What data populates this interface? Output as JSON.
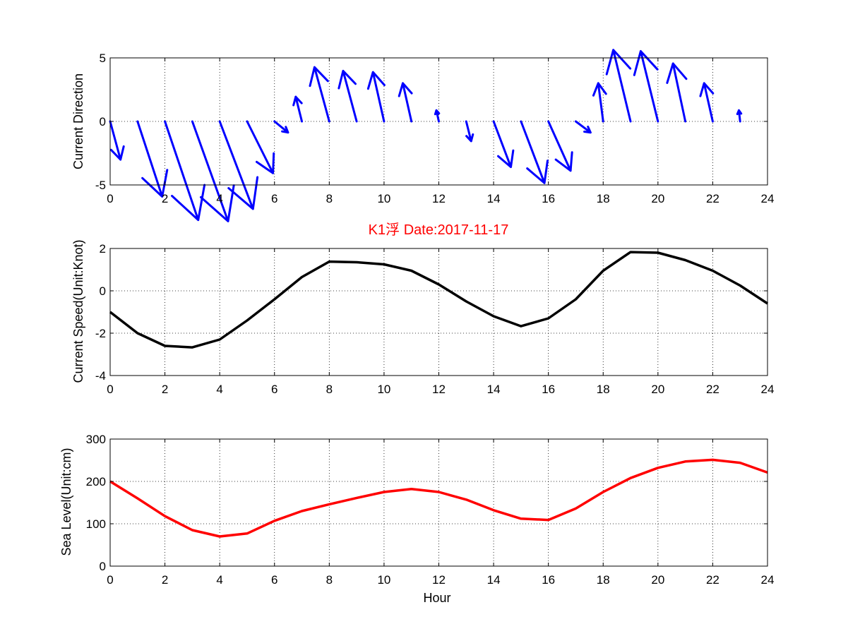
{
  "chart_data": [
    {
      "type": "quiver",
      "title": "",
      "xlabel": "",
      "ylabel": "Current Direction",
      "xlim": [
        0,
        24
      ],
      "ylim": [
        -5,
        5
      ],
      "xticks": [
        0,
        2,
        4,
        6,
        8,
        10,
        12,
        14,
        16,
        18,
        20,
        22,
        24
      ],
      "yticks": [
        -5,
        0,
        5
      ],
      "color": "#0000ff",
      "grid": true,
      "x": [
        0,
        1,
        2,
        3,
        4,
        5,
        6,
        7,
        8,
        9,
        10,
        11,
        12,
        13,
        14,
        15,
        16,
        17,
        18,
        19,
        20,
        21,
        22,
        23
      ],
      "u": [
        0.42,
        1.0,
        1.35,
        1.45,
        1.35,
        1.05,
        0.55,
        -0.25,
        -0.6,
        -0.55,
        -0.45,
        -0.35,
        -0.1,
        0.2,
        0.7,
        0.95,
        0.9,
        0.6,
        -0.2,
        -0.7,
        -0.7,
        -0.5,
        -0.35,
        -0.05
      ],
      "v": [
        -1.55,
        -3.05,
        -4.0,
        -4.05,
        -3.55,
        -2.1,
        -0.45,
        1.0,
        2.2,
        2.05,
        2.0,
        1.55,
        0.45,
        -0.8,
        -1.85,
        -2.5,
        -2.0,
        -0.45,
        1.55,
        2.9,
        2.85,
        2.35,
        1.55,
        0.45
      ]
    },
    {
      "type": "line",
      "title": "K1浮    Date:2017-11-17",
      "xlabel": "",
      "ylabel": "Current Speed(Unit:Knot)",
      "xlim": [
        0,
        24
      ],
      "ylim": [
        -4,
        2
      ],
      "xticks": [
        0,
        2,
        4,
        6,
        8,
        10,
        12,
        14,
        16,
        18,
        20,
        22,
        24
      ],
      "yticks": [
        -4,
        -2,
        0,
        2
      ],
      "color": "#000000",
      "grid": true,
      "x": [
        0,
        1,
        2,
        3,
        4,
        5,
        6,
        7,
        8,
        9,
        10,
        11,
        12,
        13,
        14,
        15,
        16,
        17,
        18,
        19,
        20,
        21,
        22,
        23,
        24
      ],
      "y": [
        -1.0,
        -2.0,
        -2.6,
        -2.67,
        -2.3,
        -1.4,
        -0.4,
        0.65,
        1.38,
        1.35,
        1.25,
        0.95,
        0.3,
        -0.5,
        -1.2,
        -1.67,
        -1.3,
        -0.4,
        0.95,
        1.83,
        1.8,
        1.45,
        0.95,
        0.25,
        -0.6
      ]
    },
    {
      "type": "line",
      "title": "",
      "xlabel": "Hour",
      "ylabel": "Sea Level(Unit:cm)",
      "xlim": [
        0,
        24
      ],
      "ylim": [
        0,
        300
      ],
      "xticks": [
        0,
        2,
        4,
        6,
        8,
        10,
        12,
        14,
        16,
        18,
        20,
        22,
        24
      ],
      "yticks": [
        0,
        100,
        200,
        300
      ],
      "color": "#ff0000",
      "grid": true,
      "x": [
        0,
        1,
        2,
        3,
        4,
        5,
        6,
        7,
        8,
        9,
        10,
        11,
        12,
        13,
        14,
        15,
        16,
        17,
        18,
        19,
        20,
        21,
        22,
        23,
        24
      ],
      "y": [
        200,
        160,
        118,
        85,
        70,
        77,
        107,
        130,
        146,
        161,
        175,
        182,
        175,
        157,
        132,
        112,
        109,
        136,
        175,
        208,
        232,
        247,
        251,
        244,
        221
      ]
    }
  ]
}
